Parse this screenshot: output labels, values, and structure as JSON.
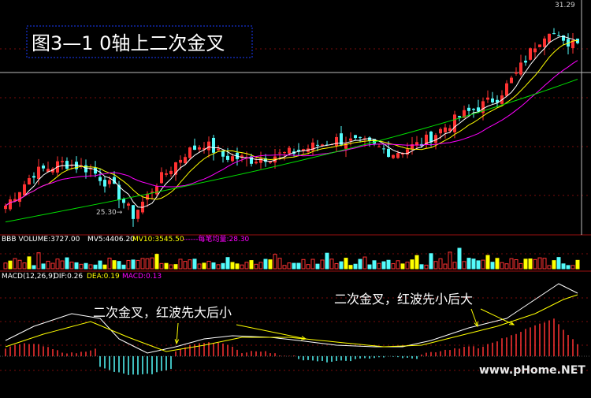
{
  "title": "图3—1  0轴上二次金叉",
  "price_panel": {
    "max_label": "31.29",
    "min_label": "25.30→"
  },
  "volume_panel": {
    "items": [
      {
        "text": "BBB VOLUME:3727.00",
        "color": "#ffffff"
      },
      {
        "text": "MV5:4406.20",
        "color": "#ffffff"
      },
      {
        "text": "MV10:3545.50",
        "color": "#ffff00"
      },
      {
        "text": "------每笔均量:28.30",
        "color": "#ff00ff"
      }
    ]
  },
  "macd_panel": {
    "items": [
      {
        "text": "MACD(12,26,9)",
        "color": "#ffffff"
      },
      {
        "text": "DIF:0.26",
        "color": "#ffffff"
      },
      {
        "text": "DEA:0.19",
        "color": "#ffff00"
      },
      {
        "text": "MACD:0.13",
        "color": "#ff00ff"
      }
    ]
  },
  "annotations": {
    "first": "二次金叉，红波先大后小",
    "second": "二次金叉，红波先小后大"
  },
  "watermark": "www.pHome.NET",
  "chart_data": {
    "type": "candlestick",
    "title": "图3—1  0轴上二次金叉",
    "price_range": [
      25.0,
      31.6
    ],
    "price_max": 31.29,
    "price_min": 25.3,
    "colors": {
      "up": "#ff3232",
      "down": "#54fcfc",
      "ma5": "#ffffff",
      "ma10": "#ffff00",
      "ma20": "#ff00ff",
      "ma60": "#00e000"
    },
    "volume": 3727.0,
    "mv5": 4406.2,
    "mv10": 3545.5,
    "avg_per_trade": 28.3,
    "dif": 0.26,
    "dea": 0.19,
    "macd": 0.13
  }
}
